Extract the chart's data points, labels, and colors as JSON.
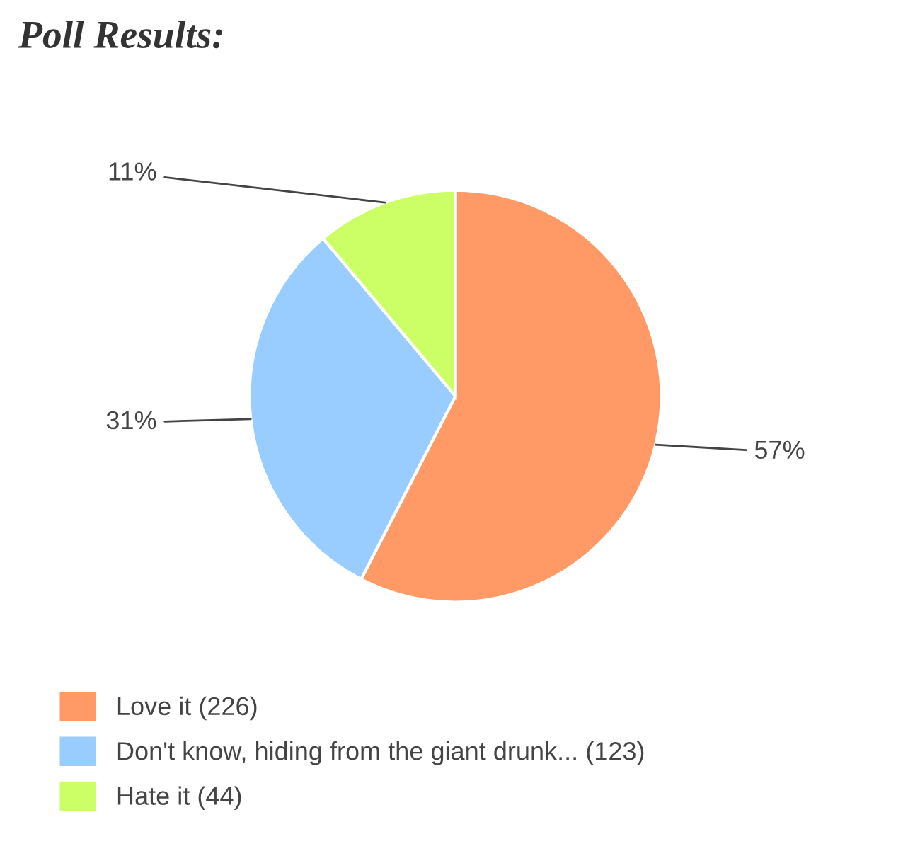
{
  "chart_data": {
    "type": "pie",
    "title": "Poll Results:",
    "categories": [
      "Love it (226)",
      "Don't know, hiding from the giant drunk... (123)",
      "Hate it (44)"
    ],
    "values": [
      57,
      31,
      11
    ],
    "value_labels": [
      "57%",
      "31%",
      "11%"
    ],
    "colors": [
      "#ff9966",
      "#99ccff",
      "#ccff66"
    ],
    "legend": "bottom"
  }
}
